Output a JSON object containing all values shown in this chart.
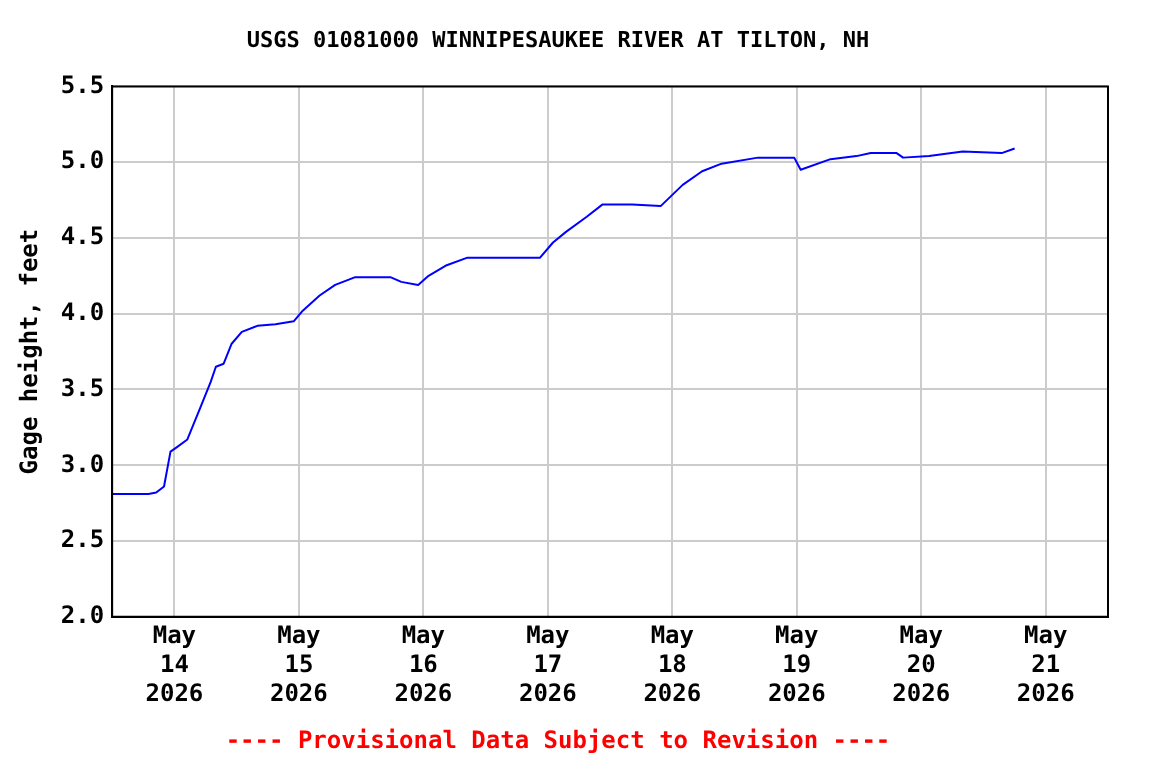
{
  "chart_data": {
    "type": "line",
    "title": "USGS 01081000 WINNIPESAUKEE RIVER AT TILTON, NH",
    "ylabel": "Gage height, feet",
    "annotations": [
      "---- Provisional Data Subject to Revision ----"
    ],
    "x": [
      "2026-05-13T12:00",
      "2026-05-13T19:00",
      "2026-05-13T20:30",
      "2026-05-13T22:00",
      "2026-05-13T23:15",
      "2026-05-14T00:30",
      "2026-05-14T02:30",
      "2026-05-14T05:00",
      "2026-05-14T07:00",
      "2026-05-14T08:00",
      "2026-05-14T09:30",
      "2026-05-14T11:00",
      "2026-05-14T13:00",
      "2026-05-14T16:00",
      "2026-05-14T19:30",
      "2026-05-14T23:00",
      "2026-05-15T00:45",
      "2026-05-15T04:00",
      "2026-05-15T07:00",
      "2026-05-15T10:45",
      "2026-05-15T17:45",
      "2026-05-15T19:45",
      "2026-05-15T23:00",
      "2026-05-16T01:00",
      "2026-05-16T04:30",
      "2026-05-16T08:30",
      "2026-05-16T22:30",
      "2026-05-17T01:00",
      "2026-05-17T03:30",
      "2026-05-17T07:30",
      "2026-05-17T10:30",
      "2026-05-17T16:15",
      "2026-05-17T21:45",
      "2026-05-18T02:00",
      "2026-05-18T05:45",
      "2026-05-18T09:30",
      "2026-05-18T16:30",
      "2026-05-18T23:30",
      "2026-05-19T00:45",
      "2026-05-19T06:30",
      "2026-05-19T11:30",
      "2026-05-19T14:15",
      "2026-05-19T19:15",
      "2026-05-19T20:30",
      "2026-05-20T01:30",
      "2026-05-20T08:00",
      "2026-05-20T15:30",
      "2026-05-20T18:00"
    ],
    "series": [
      {
        "color": "#0000ff",
        "values": [
          2.81,
          2.81,
          2.82,
          2.86,
          3.09,
          3.12,
          3.17,
          3.38,
          3.55,
          3.65,
          3.67,
          3.8,
          3.88,
          3.92,
          3.93,
          3.95,
          4.02,
          4.12,
          4.19,
          4.24,
          4.24,
          4.21,
          4.19,
          4.25,
          4.32,
          4.37,
          4.37,
          4.47,
          4.54,
          4.64,
          4.72,
          4.72,
          4.71,
          4.85,
          4.94,
          4.99,
          5.03,
          5.03,
          4.95,
          5.02,
          5.04,
          5.06,
          5.06,
          5.03,
          5.04,
          5.07,
          5.06,
          5.09
        ]
      }
    ],
    "xlim": [
      "2026-05-13T12:00",
      "2026-05-21T12:00"
    ],
    "xticks": [
      {
        "value": "2026-05-14",
        "label": "May 14 2026"
      },
      {
        "value": "2026-05-15",
        "label": "May 15 2026"
      },
      {
        "value": "2026-05-16",
        "label": "May 16 2026"
      },
      {
        "value": "2026-05-17",
        "label": "May 17 2026"
      },
      {
        "value": "2026-05-18",
        "label": "May 18 2026"
      },
      {
        "value": "2026-05-19",
        "label": "May 19 2026"
      },
      {
        "value": "2026-05-20",
        "label": "May 20 2026"
      },
      {
        "value": "2026-05-21",
        "label": "May 21 2026"
      }
    ],
    "ylim": [
      2,
      5.5
    ],
    "yticks": [
      {
        "value": 2,
        "label": "2.0"
      },
      {
        "value": 2.5,
        "label": "2.5"
      },
      {
        "value": 3,
        "label": "3.0"
      },
      {
        "value": 3.5,
        "label": "3.5"
      },
      {
        "value": 4,
        "label": "4.0"
      },
      {
        "value": 4.5,
        "label": "4.5"
      },
      {
        "value": 5,
        "label": "5.0"
      },
      {
        "value": 5.5,
        "label": "5.5"
      }
    ],
    "grid": true,
    "legend": false,
    "marker": "none",
    "line_style": "solid"
  }
}
